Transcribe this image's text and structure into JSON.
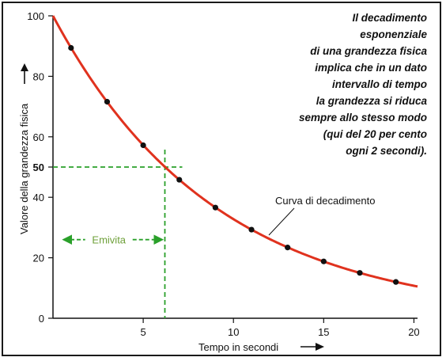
{
  "chart_data": {
    "type": "line",
    "title": "",
    "xlabel": "Tempo in secondi",
    "ylabel": "Valore della grandezza fisica",
    "xlim": [
      0,
      20.2
    ],
    "ylim": [
      0,
      100
    ],
    "x_ticks": [
      5,
      10,
      15,
      20
    ],
    "y_ticks": [
      0,
      20,
      40,
      50,
      60,
      80,
      100
    ],
    "y_tick_labels": [
      "0",
      "20",
      "40",
      "50",
      "60",
      "80",
      "100"
    ],
    "highlight_y_tick": "50",
    "grid": false,
    "series": [
      {
        "name": "Curva di decadimento",
        "decay_per_2_seconds": 0.2,
        "start_value": 100,
        "color": "#e0321e",
        "markers": [
          {
            "x": 1,
            "y": 89.4
          },
          {
            "x": 3,
            "y": 71.6
          },
          {
            "x": 5,
            "y": 57.2
          },
          {
            "x": 7,
            "y": 45.8
          },
          {
            "x": 9,
            "y": 36.6
          },
          {
            "x": 11,
            "y": 29.3
          },
          {
            "x": 13,
            "y": 23.4
          },
          {
            "x": 15,
            "y": 18.8
          },
          {
            "x": 17,
            "y": 15.0
          },
          {
            "x": 19,
            "y": 12.0
          }
        ]
      }
    ],
    "half_life": {
      "x": 6.2,
      "y": 50,
      "label": "Emivita",
      "color": "#2aa02a",
      "label_color": "#6fa03a"
    },
    "annotation_lines": [
      "Il decadimento",
      "esponenziale",
      "di una grandezza fisica",
      "implica che in un dato",
      "intervallo di tempo",
      "la grandezza si riduca",
      "sempre allo stesso modo",
      "(qui del 20 per cento",
      "ogni 2 secondi)."
    ],
    "curve_label": "Curva di decadimento"
  }
}
